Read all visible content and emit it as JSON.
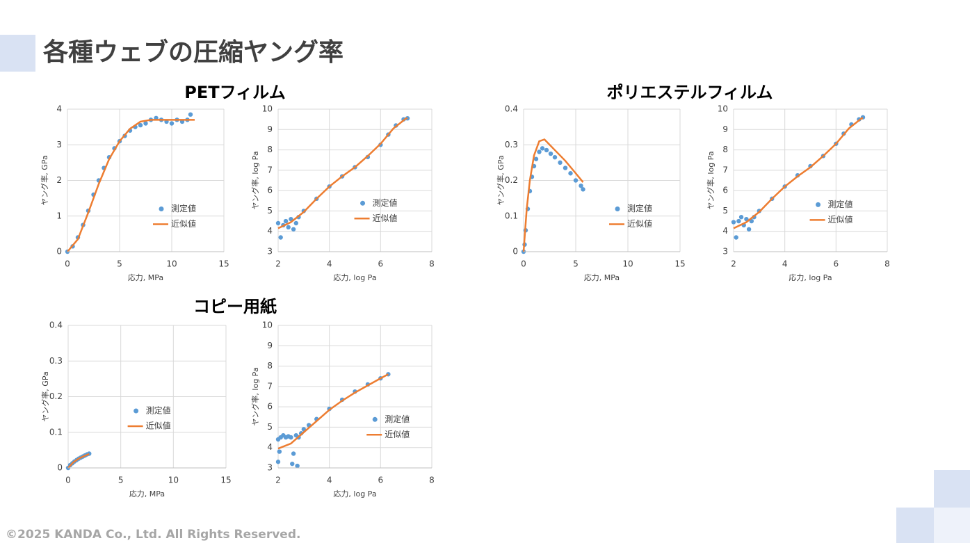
{
  "header": {
    "title": "各種ウェブの圧縮ヤング率"
  },
  "groups": [
    "PETフィルム",
    "ポリエステルフィルム",
    "コピー用紙"
  ],
  "footer": "©2025 KANDA Co., Ltd. All Rights Reserved.",
  "chart_data": [
    {
      "type": "scatter",
      "xlabel": "応力, MPa",
      "ylabel": "ヤング率, GPa",
      "xlim": [
        0,
        15
      ],
      "ylim": [
        0,
        4
      ],
      "xticks": [
        0,
        5,
        10,
        15
      ],
      "yticks": [
        0,
        1,
        2,
        3,
        4
      ],
      "grid": true,
      "series": [
        {
          "name": "測定値",
          "color": "#5b9bd5",
          "mode": "markers",
          "x": [
            0,
            0.5,
            1,
            1.5,
            2,
            2.5,
            3,
            3.5,
            4,
            4.5,
            5,
            5.5,
            6,
            6.5,
            7,
            7.5,
            8,
            8.5,
            9,
            9.5,
            10,
            10.5,
            11,
            11.5,
            11.8
          ],
          "values": [
            0,
            0.15,
            0.4,
            0.75,
            1.15,
            1.6,
            2.0,
            2.35,
            2.65,
            2.9,
            3.1,
            3.25,
            3.4,
            3.5,
            3.55,
            3.6,
            3.7,
            3.75,
            3.7,
            3.65,
            3.6,
            3.7,
            3.65,
            3.7,
            3.85
          ]
        },
        {
          "name": "近似値",
          "color": "#ed7d31",
          "mode": "line",
          "x": [
            0,
            1,
            2,
            3,
            4,
            5,
            6,
            7,
            8,
            9,
            10,
            11,
            12.2
          ],
          "values": [
            0,
            0.35,
            1.1,
            1.9,
            2.6,
            3.1,
            3.45,
            3.65,
            3.7,
            3.7,
            3.7,
            3.7,
            3.7
          ]
        }
      ]
    },
    {
      "type": "scatter",
      "xlabel": "応力, log Pa",
      "ylabel": "ヤング率, log Pa",
      "xlim": [
        2,
        8
      ],
      "ylim": [
        3,
        10
      ],
      "xticks": [
        2,
        4,
        6,
        8
      ],
      "yticks": [
        3,
        4,
        5,
        6,
        7,
        8,
        9,
        10
      ],
      "grid": true,
      "series": [
        {
          "name": "測定値",
          "color": "#5b9bd5",
          "mode": "markers",
          "x": [
            2,
            2.1,
            2.2,
            2.3,
            2.4,
            2.5,
            2.6,
            2.7,
            2.8,
            3,
            3.5,
            4,
            4.5,
            5,
            5.5,
            6,
            6.3,
            6.6,
            6.9,
            7.05
          ],
          "values": [
            4.4,
            3.7,
            4.3,
            4.5,
            4.2,
            4.6,
            4.1,
            4.4,
            4.7,
            5.0,
            5.6,
            6.2,
            6.7,
            7.15,
            7.65,
            8.25,
            8.75,
            9.2,
            9.5,
            9.55
          ]
        },
        {
          "name": "近似値",
          "color": "#ed7d31",
          "mode": "line",
          "x": [
            2,
            2.5,
            3,
            3.5,
            4,
            4.5,
            5,
            5.5,
            6,
            6.5,
            7,
            7.05
          ],
          "values": [
            4.15,
            4.45,
            4.95,
            5.6,
            6.2,
            6.7,
            7.15,
            7.7,
            8.3,
            9.05,
            9.55,
            9.55
          ]
        }
      ]
    },
    {
      "type": "scatter",
      "xlabel": "応力, MPa",
      "ylabel": "ヤング率, GPa",
      "xlim": [
        0,
        15
      ],
      "ylim": [
        0,
        0.4
      ],
      "xticks": [
        0,
        5,
        10,
        15
      ],
      "yticks": [
        0,
        0.1,
        0.2,
        0.3,
        0.4
      ],
      "grid": true,
      "series": [
        {
          "name": "測定値",
          "color": "#5b9bd5",
          "mode": "markers",
          "x": [
            0,
            0.1,
            0.2,
            0.4,
            0.6,
            0.8,
            1,
            1.2,
            1.5,
            1.8,
            2.2,
            2.6,
            3,
            3.5,
            4,
            4.5,
            5,
            5.5,
            5.7
          ],
          "values": [
            0,
            0.02,
            0.06,
            0.12,
            0.17,
            0.21,
            0.24,
            0.26,
            0.28,
            0.29,
            0.285,
            0.275,
            0.265,
            0.25,
            0.235,
            0.22,
            0.2,
            0.185,
            0.175
          ]
        },
        {
          "name": "近似値",
          "color": "#ed7d31",
          "mode": "line",
          "x": [
            0,
            0.3,
            0.6,
            1,
            1.5,
            2,
            2.5,
            3,
            4,
            5,
            5.7
          ],
          "values": [
            0,
            0.12,
            0.2,
            0.27,
            0.31,
            0.315,
            0.3,
            0.285,
            0.255,
            0.22,
            0.195
          ]
        }
      ]
    },
    {
      "type": "scatter",
      "xlabel": "応力, log Pa",
      "ylabel": "ヤング率, log Pa",
      "xlim": [
        2,
        8
      ],
      "ylim": [
        3,
        10
      ],
      "xticks": [
        2,
        4,
        6,
        8
      ],
      "yticks": [
        3,
        4,
        5,
        6,
        7,
        8,
        9,
        10
      ],
      "grid": true,
      "series": [
        {
          "name": "測定値",
          "color": "#5b9bd5",
          "mode": "markers",
          "x": [
            2,
            2.1,
            2.2,
            2.3,
            2.4,
            2.5,
            2.6,
            2.7,
            2.8,
            3,
            3.5,
            4,
            4.5,
            5,
            5.5,
            6,
            6.3,
            6.6,
            6.9,
            7.05
          ],
          "values": [
            4.45,
            3.7,
            4.5,
            4.7,
            4.3,
            4.6,
            4.1,
            4.5,
            4.7,
            5.0,
            5.6,
            6.2,
            6.75,
            7.2,
            7.7,
            8.3,
            8.8,
            9.25,
            9.5,
            9.6
          ]
        },
        {
          "name": "近似値",
          "color": "#ed7d31",
          "mode": "line",
          "x": [
            2,
            2.5,
            3,
            3.5,
            4,
            4.5,
            5,
            5.5,
            6,
            6.5,
            7,
            7.05
          ],
          "values": [
            4.15,
            4.45,
            4.95,
            5.6,
            6.2,
            6.7,
            7.15,
            7.7,
            8.3,
            9.05,
            9.55,
            9.55
          ]
        }
      ]
    },
    {
      "type": "scatter",
      "xlabel": "応力, MPa",
      "ylabel": "ヤング率, GPa",
      "xlim": [
        0,
        15
      ],
      "ylim": [
        0,
        0.4
      ],
      "xticks": [
        0,
        5,
        10,
        15
      ],
      "yticks": [
        0,
        0.1,
        0.2,
        0.3,
        0.4
      ],
      "grid": true,
      "series": [
        {
          "name": "測定値",
          "color": "#5b9bd5",
          "mode": "markers",
          "x": [
            0,
            0.2,
            0.4,
            0.6,
            0.8,
            1,
            1.2,
            1.4,
            1.6,
            1.8,
            2
          ],
          "values": [
            0,
            0.008,
            0.013,
            0.018,
            0.022,
            0.026,
            0.029,
            0.032,
            0.035,
            0.038,
            0.04
          ]
        },
        {
          "name": "近似値",
          "color": "#ed7d31",
          "mode": "line",
          "x": [
            0,
            0.5,
            1,
            1.5,
            2
          ],
          "values": [
            0,
            0.016,
            0.026,
            0.033,
            0.039
          ]
        }
      ]
    },
    {
      "type": "scatter",
      "xlabel": "応力, log Pa",
      "ylabel": "ヤング率, log Pa",
      "xlim": [
        2,
        8
      ],
      "ylim": [
        3,
        10
      ],
      "xticks": [
        2,
        4,
        6,
        8
      ],
      "yticks": [
        3,
        4,
        5,
        6,
        7,
        8,
        9,
        10
      ],
      "grid": true,
      "series": [
        {
          "name": "測定値",
          "color": "#5b9bd5",
          "mode": "markers",
          "x": [
            2,
            2,
            2.05,
            2.1,
            2.2,
            2.3,
            2.4,
            2.5,
            2.55,
            2.6,
            2.7,
            2.75,
            2.8,
            2.9,
            3,
            3.2,
            3.5,
            4,
            4.5,
            5,
            5.5,
            6,
            6.3
          ],
          "values": [
            4.4,
            3.3,
            3.8,
            4.5,
            4.6,
            4.5,
            4.55,
            4.5,
            3.2,
            3.7,
            4.6,
            3.1,
            4.5,
            4.7,
            4.9,
            5.1,
            5.4,
            5.9,
            6.35,
            6.75,
            7.1,
            7.4,
            7.6
          ]
        },
        {
          "name": "近似値",
          "color": "#ed7d31",
          "mode": "line",
          "x": [
            2,
            2.5,
            3,
            3.5,
            4,
            4.5,
            5,
            5.5,
            6,
            6.3
          ],
          "values": [
            3.95,
            4.2,
            4.75,
            5.3,
            5.85,
            6.3,
            6.7,
            7.05,
            7.4,
            7.6
          ]
        }
      ]
    }
  ]
}
